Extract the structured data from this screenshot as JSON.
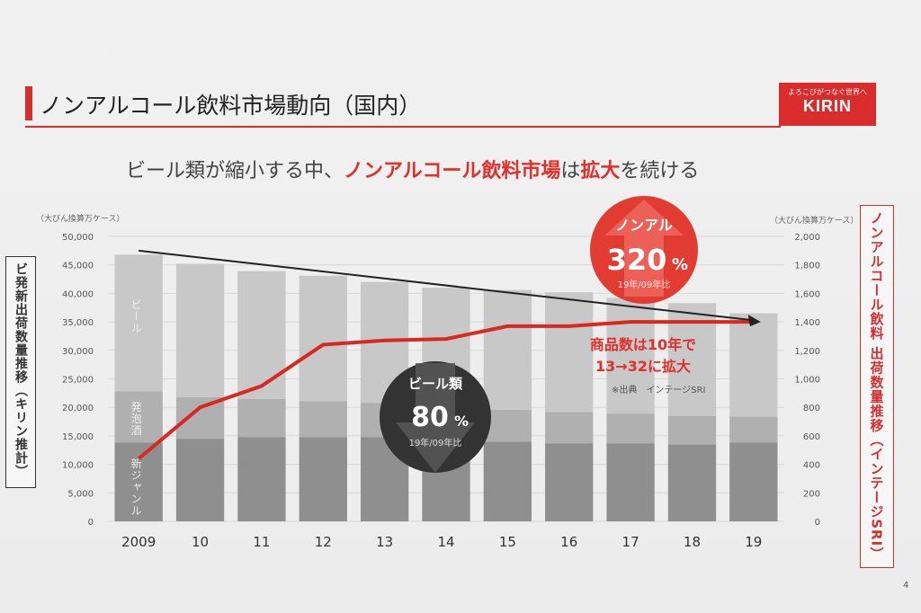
{
  "header": {
    "title": "ノンアルコール飲料市場動向（国内）",
    "logo_tagline": "よろこびがつなぐ世界へ",
    "logo_brand": "KIRIN"
  },
  "subtitle": {
    "part1": "ビール類が縮小する中、",
    "highlight1": "ノンアルコール飲料市場",
    "part2": "は",
    "highlight2": "拡大",
    "part3": "を続ける"
  },
  "units": {
    "left": "（大びん換算万ケース）",
    "right": "（大びん換算万ケース）"
  },
  "left_axis_label": "ビ発新出荷数量推移（キリン推計）",
  "right_axis_label": "ノンアルコール飲料 出荷数量推移（インテージSRI）",
  "bubbles": {
    "nonal": {
      "label": "ノンアル",
      "value": "320",
      "unit": "%",
      "note": "19年/09年比"
    },
    "beer": {
      "label": "ビール類",
      "value": "80",
      "unit": "%",
      "note": "19年/09年比"
    }
  },
  "annotation": {
    "line1": "商品数は10年で",
    "line2": "13→32に拡大"
  },
  "source_note": "※出典　インテージSRI",
  "page_number": "4",
  "colors": {
    "accent": "#e0302b",
    "beer": "#c8c8c8",
    "happoshu": "#b0b0b0",
    "newgenre": "#8f8f8f",
    "nonal_line": "#d7291f"
  },
  "chart_data": {
    "type": "bar",
    "stacked": true,
    "categories": [
      "2009",
      "10",
      "11",
      "12",
      "13",
      "14",
      "15",
      "16",
      "17",
      "18",
      "19"
    ],
    "segment_labels": [
      "新ジャンル",
      "発泡酒",
      "ビール"
    ],
    "series": [
      {
        "name": "新ジャンル",
        "axis": "left",
        "values": [
          13800,
          14500,
          14800,
          14800,
          14800,
          14200,
          14000,
          13700,
          13700,
          13500,
          13800
        ]
      },
      {
        "name": "発泡酒",
        "axis": "left",
        "values": [
          9000,
          7300,
          6700,
          6300,
          6000,
          5900,
          5600,
          5500,
          5200,
          5000,
          4600
        ]
      },
      {
        "name": "ビール",
        "axis": "left",
        "values": [
          24000,
          23400,
          22400,
          22000,
          21200,
          20900,
          21000,
          21000,
          20300,
          19800,
          18100
        ]
      },
      {
        "type": "line",
        "axis": "right",
        "values": [
          440,
          800,
          950,
          1240,
          1270,
          1280,
          1370,
          1370,
          1400,
          1400,
          1400
        ]
      }
    ],
    "trend_arrow": {
      "from": {
        "x": "2009",
        "value": 47500
      },
      "to": {
        "x": "19",
        "value": 1400,
        "axis": "right"
      }
    },
    "yleft": {
      "ticks": [
        "0",
        "5,000",
        "10,000",
        "15,000",
        "20,000",
        "25,000",
        "30,000",
        "35,000",
        "40,000",
        "45,000",
        "50,000"
      ],
      "ylim": [
        0,
        50000
      ]
    },
    "yright": {
      "ticks": [
        "0",
        "200",
        "400",
        "600",
        "800",
        "1,000",
        "1,200",
        "1,400",
        "1,600",
        "1,800",
        "2,000"
      ],
      "ylim": [
        0,
        2000
      ]
    },
    "grid": true
  }
}
